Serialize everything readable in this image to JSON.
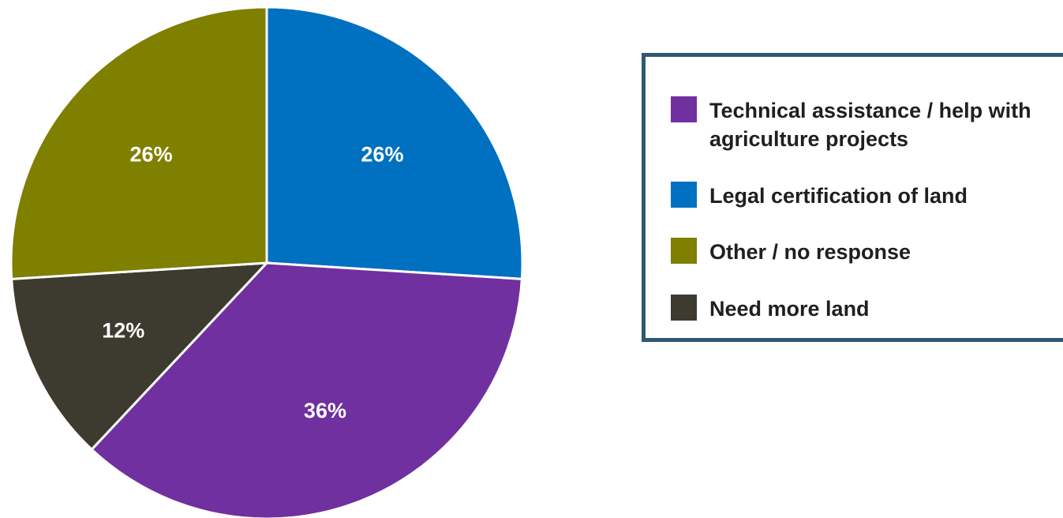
{
  "chart_data": {
    "type": "pie",
    "title": "",
    "slices": [
      {
        "label": "Legal certification of land",
        "value": 26,
        "display": "26%",
        "color": "#0070c0"
      },
      {
        "label": "Technical assistance / help with agriculture projects",
        "value": 36,
        "display": "36%",
        "color": "#7030a0"
      },
      {
        "label": "Need more land",
        "value": 12,
        "display": "12%",
        "color": "#3d3a2f"
      },
      {
        "label": "Other / no response",
        "value": 26,
        "display": "26%",
        "color": "#7f7f00"
      }
    ],
    "start_angle_deg": 0,
    "direction": "clockwise",
    "legend_placement": "right",
    "legend": [
      {
        "label": "Technical assistance / help with agriculture projects",
        "color": "#7030a0"
      },
      {
        "label": "Legal certification of land",
        "color": "#0070c0"
      },
      {
        "label": "Other / no response",
        "color": "#7f7f00"
      },
      {
        "label": "Need more land",
        "color": "#3d3a2f"
      }
    ]
  }
}
